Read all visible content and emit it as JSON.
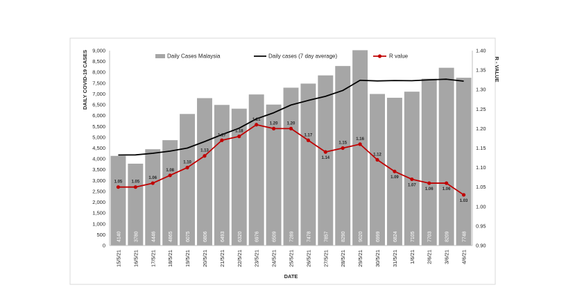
{
  "chart_data": {
    "type": "bar",
    "title": "",
    "xlabel": "DATE",
    "ylabel": "DAILY COVID-19 CASES",
    "y2label": "R - VALUE",
    "ylim": [
      0,
      9000
    ],
    "y2lim": [
      0.9,
      1.4
    ],
    "yticks": [
      "0",
      "500",
      "1,000",
      "1,500",
      "2,000",
      "2,500",
      "3,000",
      "3,500",
      "4,000",
      "4,500",
      "5,000",
      "5,500",
      "6,000",
      "6,500",
      "7,000",
      "7,500",
      "8,000",
      "8,500",
      "9,000"
    ],
    "y2ticks": [
      "0.90",
      "0.95",
      "1.00",
      "1.05",
      "1.10",
      "1.15",
      "1.20",
      "1.25",
      "1.30",
      "1.35",
      "1.40"
    ],
    "categories": [
      "15/5/21",
      "16/5/21",
      "17/5/21",
      "18/5/21",
      "19/5/21",
      "20/5/21",
      "21/5/21",
      "22/5/21",
      "23/5/21",
      "24/5/21",
      "25/5/21",
      "26/5/21",
      "27/5/21",
      "28/5/21",
      "29/5/21",
      "30/5/21",
      "31/5/21",
      "1/6/21",
      "2/6/21",
      "3/6/21",
      "4/6/21"
    ],
    "series": [
      {
        "name": "Daily Cases Malaysia",
        "kind": "bar",
        "axis": "left",
        "color": "#a6a6a6",
        "values": [
          4140,
          3780,
          4446,
          4865,
          6075,
          6806,
          6493,
          6320,
          6976,
          6509,
          7289,
          7478,
          7857,
          8290,
          9020,
          6999,
          6824,
          7105,
          7703,
          8209,
          7748
        ],
        "labels": [
          "4140",
          "3780",
          "4446",
          "4865",
          "6075",
          "6806",
          "6493",
          "6320",
          "6976",
          "6509",
          "7289",
          "7478",
          "7857",
          "8290",
          "9020",
          "6999",
          "6824",
          "7105",
          "7703",
          "8209",
          "7748"
        ]
      },
      {
        "name": "Daily cases (7 day average)",
        "kind": "line",
        "axis": "left",
        "color": "#000000",
        "values": [
          4180,
          4185,
          4260,
          4360,
          4500,
          4800,
          5120,
          5420,
          5850,
          6130,
          6490,
          6700,
          6890,
          7160,
          7630,
          7600,
          7620,
          7610,
          7650,
          7680,
          7590
        ]
      },
      {
        "name": "R value",
        "kind": "line",
        "axis": "right",
        "color": "#c00000",
        "values": [
          1.05,
          1.05,
          1.06,
          1.08,
          1.1,
          1.13,
          1.17,
          1.18,
          1.21,
          1.2,
          1.2,
          1.17,
          1.14,
          1.15,
          1.16,
          1.12,
          1.09,
          1.07,
          1.06,
          1.06,
          1.03
        ],
        "labels": [
          "1.05",
          "1.05",
          "1.06",
          "1.08",
          "1.10",
          "1.13",
          "1.17",
          "1.18",
          "1.21",
          "1.20",
          "1.20",
          "1.17",
          "1.14",
          "1.15",
          "1.16",
          "1.12",
          "1.09",
          "1.07",
          "1.06",
          "1.06",
          "1.03"
        ]
      }
    ],
    "legend": "top",
    "grid": false
  }
}
